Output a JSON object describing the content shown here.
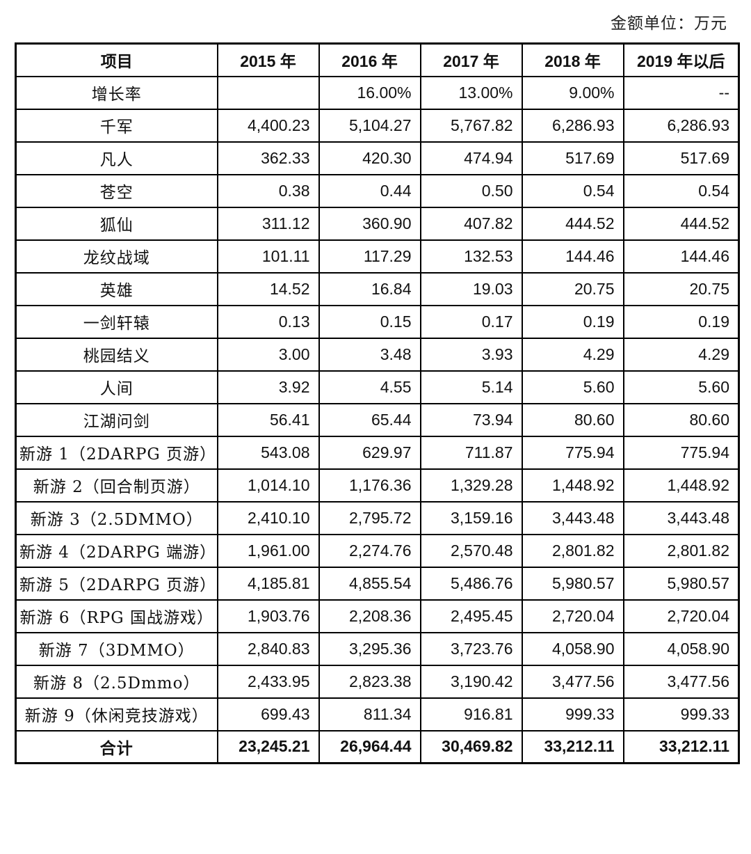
{
  "unit_note": "金额单位：万元",
  "headers": [
    "项目",
    "2015 年",
    "2016 年",
    "2017 年",
    "2018 年",
    "2019 年以后"
  ],
  "rows": [
    {
      "name": "增长率",
      "values": [
        "",
        "16.00%",
        "13.00%",
        "9.00%",
        "--"
      ]
    },
    {
      "name": "千军",
      "values": [
        "4,400.23",
        "5,104.27",
        "5,767.82",
        "6,286.93",
        "6,286.93"
      ]
    },
    {
      "name": "凡人",
      "values": [
        "362.33",
        "420.30",
        "474.94",
        "517.69",
        "517.69"
      ]
    },
    {
      "name": "苍空",
      "values": [
        "0.38",
        "0.44",
        "0.50",
        "0.54",
        "0.54"
      ]
    },
    {
      "name": "狐仙",
      "values": [
        "311.12",
        "360.90",
        "407.82",
        "444.52",
        "444.52"
      ]
    },
    {
      "name": "龙纹战域",
      "values": [
        "101.11",
        "117.29",
        "132.53",
        "144.46",
        "144.46"
      ]
    },
    {
      "name": "英雄",
      "values": [
        "14.52",
        "16.84",
        "19.03",
        "20.75",
        "20.75"
      ]
    },
    {
      "name": "一剑轩辕",
      "values": [
        "0.13",
        "0.15",
        "0.17",
        "0.19",
        "0.19"
      ]
    },
    {
      "name": "桃园结义",
      "values": [
        "3.00",
        "3.48",
        "3.93",
        "4.29",
        "4.29"
      ]
    },
    {
      "name": "人间",
      "values": [
        "3.92",
        "4.55",
        "5.14",
        "5.60",
        "5.60"
      ]
    },
    {
      "name": "江湖问剑",
      "values": [
        "56.41",
        "65.44",
        "73.94",
        "80.60",
        "80.60"
      ]
    },
    {
      "name": "新游 1（2DARPG 页游）",
      "values": [
        "543.08",
        "629.97",
        "711.87",
        "775.94",
        "775.94"
      ]
    },
    {
      "name": "新游 2（回合制页游）",
      "values": [
        "1,014.10",
        "1,176.36",
        "1,329.28",
        "1,448.92",
        "1,448.92"
      ]
    },
    {
      "name": "新游 3（2.5DMMO）",
      "values": [
        "2,410.10",
        "2,795.72",
        "3,159.16",
        "3,443.48",
        "3,443.48"
      ]
    },
    {
      "name": "新游 4（2DARPG 端游）",
      "values": [
        "1,961.00",
        "2,274.76",
        "2,570.48",
        "2,801.82",
        "2,801.82"
      ]
    },
    {
      "name": "新游 5（2DARPG 页游）",
      "values": [
        "4,185.81",
        "4,855.54",
        "5,486.76",
        "5,980.57",
        "5,980.57"
      ]
    },
    {
      "name": "新游 6（RPG 国战游戏）",
      "values": [
        "1,903.76",
        "2,208.36",
        "2,495.45",
        "2,720.04",
        "2,720.04"
      ]
    },
    {
      "name": "新游 7（3DMMO）",
      "values": [
        "2,840.83",
        "3,295.36",
        "3,723.76",
        "4,058.90",
        "4,058.90"
      ]
    },
    {
      "name": "新游 8（2.5Dmmo）",
      "values": [
        "2,433.95",
        "2,823.38",
        "3,190.42",
        "3,477.56",
        "3,477.56"
      ]
    },
    {
      "name": "新游 9（休闲竞技游戏）",
      "values": [
        "699.43",
        "811.34",
        "916.81",
        "999.33",
        "999.33"
      ]
    }
  ],
  "total": {
    "name": "合计",
    "values": [
      "23,245.21",
      "26,964.44",
      "30,469.82",
      "33,212.11",
      "33,212.11"
    ]
  }
}
